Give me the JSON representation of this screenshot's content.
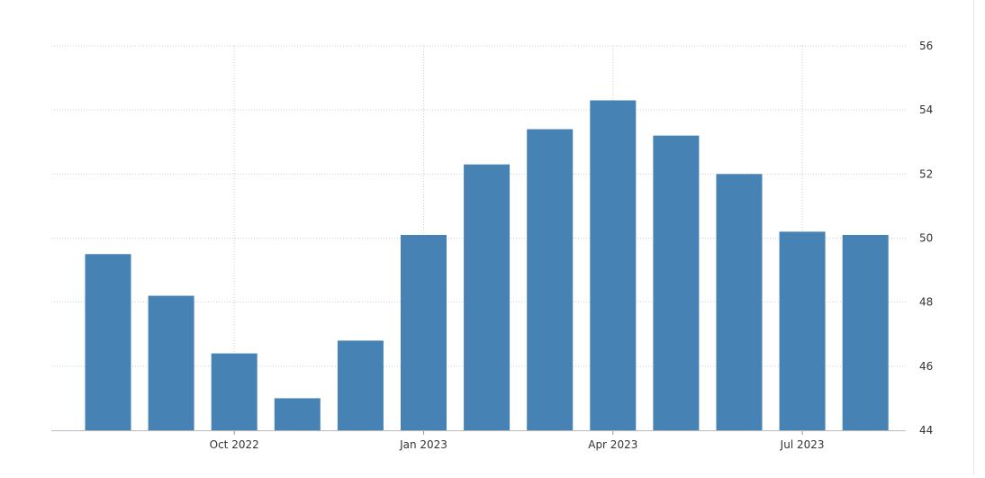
{
  "chart_data": {
    "type": "bar",
    "title": "",
    "xlabel": "",
    "ylabel": "",
    "ylim": [
      44,
      56
    ],
    "y_ticks": [
      44,
      46,
      48,
      50,
      52,
      54,
      56
    ],
    "y_axis_position": "right",
    "grid": true,
    "months": [
      "Aug 2022",
      "Sep 2022",
      "Oct 2022",
      "Nov 2022",
      "Dec 2022",
      "Jan 2023",
      "Feb 2023",
      "Mar 2023",
      "Apr 2023",
      "May 2023",
      "Jun 2023",
      "Jul 2023",
      "Aug 2023"
    ],
    "values": [
      49.5,
      48.2,
      46.4,
      45.0,
      46.8,
      50.1,
      52.3,
      53.4,
      54.3,
      53.2,
      52.0,
      50.2,
      50.1
    ],
    "x_tick_labels": [
      "Oct 2022",
      "Jan 2023",
      "Apr 2023",
      "Jul 2023"
    ],
    "bar_color": "#4682b4",
    "grid_color": "#cfcfcf"
  }
}
